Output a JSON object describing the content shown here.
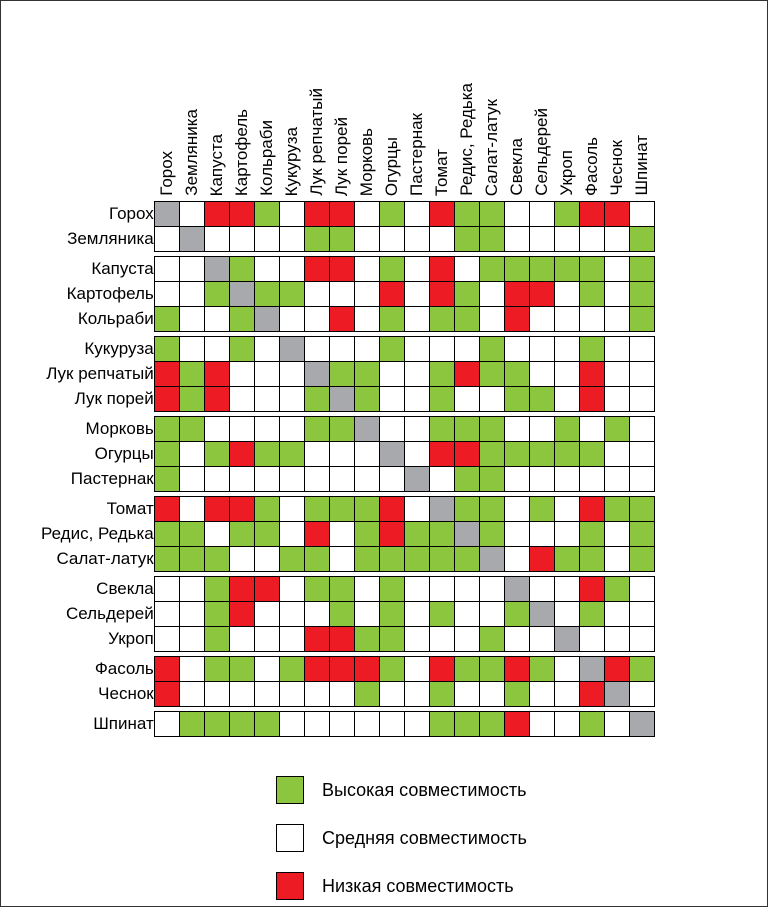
{
  "colors": {
    "high": "#8cc63f",
    "medium": "#ffffff",
    "low": "#ed1c24",
    "diag": "#a7a9ac",
    "border": "#000000",
    "background": "#ffffff",
    "text": "#000000"
  },
  "cellSize": 25,
  "labelFontSize": 17,
  "legendFontSize": 18,
  "headerHeight": 160,
  "plants": [
    "Горох",
    "Земляника",
    "Капуста",
    "Картофель",
    "Кольраби",
    "Кукуруза",
    "Лук репчатый",
    "Лук порей",
    "Морковь",
    "Огурцы",
    "Пастернак",
    "Томат",
    "Редис, Редька",
    "Салат-латук",
    "Свекла",
    "Сельдерей",
    "Укроп",
    "Фасоль",
    "Чеснок",
    "Шпинат"
  ],
  "gapsAfter": [
    1,
    4,
    7,
    10,
    13,
    16,
    18
  ],
  "matrix": [
    [
      "D",
      "",
      "L",
      "L",
      "H",
      "",
      "L",
      "L",
      "",
      "H",
      "",
      "L",
      "H",
      "H",
      "",
      "",
      "H",
      "L",
      "L",
      ""
    ],
    [
      "",
      "D",
      "",
      "",
      "",
      "",
      "H",
      "H",
      "",
      "",
      "",
      "",
      "H",
      "H",
      "",
      "",
      "",
      "",
      "",
      "H"
    ],
    [
      "",
      "",
      "D",
      "H",
      "",
      "",
      "L",
      "L",
      "",
      "H",
      "",
      "L",
      "",
      "H",
      "H",
      "H",
      "H",
      "H",
      "",
      "H"
    ],
    [
      "",
      "",
      "H",
      "D",
      "H",
      "H",
      "",
      "",
      "",
      "L",
      "",
      "L",
      "H",
      "",
      "L",
      "L",
      "",
      "H",
      "",
      "H"
    ],
    [
      "H",
      "",
      "",
      "H",
      "D",
      "",
      "",
      "L",
      "",
      "H",
      "",
      "H",
      "H",
      "",
      "L",
      "",
      "",
      "",
      "",
      "H"
    ],
    [
      "H",
      "",
      "",
      "H",
      "",
      "D",
      "",
      "",
      "",
      "H",
      "",
      "",
      "",
      "H",
      "",
      "",
      "",
      "H",
      "",
      ""
    ],
    [
      "L",
      "H",
      "L",
      "",
      "",
      "",
      "D",
      "H",
      "H",
      "",
      "",
      "H",
      "L",
      "H",
      "H",
      "",
      "",
      "L",
      "",
      ""
    ],
    [
      "L",
      "H",
      "L",
      "",
      "",
      "",
      "H",
      "D",
      "H",
      "",
      "",
      "H",
      "",
      "",
      "H",
      "H",
      "",
      "L",
      "",
      ""
    ],
    [
      "H",
      "H",
      "",
      "",
      "",
      "",
      "H",
      "H",
      "D",
      "",
      "",
      "H",
      "H",
      "H",
      "",
      "",
      "H",
      "",
      "H",
      ""
    ],
    [
      "H",
      "",
      "H",
      "L",
      "H",
      "H",
      "",
      "",
      "",
      "D",
      "",
      "L",
      "L",
      "H",
      "H",
      "H",
      "H",
      "H",
      "",
      ""
    ],
    [
      "H",
      "",
      "",
      "",
      "",
      "",
      "",
      "",
      "",
      "",
      "D",
      "",
      "H",
      "H",
      "",
      "",
      "",
      "",
      "",
      ""
    ],
    [
      "L",
      "",
      "L",
      "L",
      "H",
      "",
      "H",
      "H",
      "H",
      "L",
      "",
      "D",
      "H",
      "H",
      "",
      "H",
      "",
      "L",
      "H",
      "H"
    ],
    [
      "H",
      "H",
      "",
      "H",
      "H",
      "",
      "L",
      "",
      "H",
      "L",
      "H",
      "H",
      "D",
      "H",
      "",
      "",
      "",
      "H",
      "",
      "H"
    ],
    [
      "H",
      "H",
      "H",
      "",
      "",
      "H",
      "H",
      "",
      "H",
      "H",
      "H",
      "H",
      "H",
      "D",
      "",
      "L",
      "H",
      "H",
      "",
      "H"
    ],
    [
      "",
      "",
      "H",
      "L",
      "L",
      "",
      "H",
      "H",
      "",
      "H",
      "",
      "",
      "",
      "",
      "D",
      "",
      "",
      "L",
      "H",
      ""
    ],
    [
      "",
      "",
      "H",
      "L",
      "",
      "",
      "",
      "H",
      "",
      "H",
      "",
      "H",
      "",
      "",
      "H",
      "D",
      "",
      "H",
      "",
      ""
    ],
    [
      "",
      "",
      "H",
      "",
      "",
      "",
      "L",
      "L",
      "H",
      "H",
      "",
      "",
      "",
      "H",
      "",
      "",
      "D",
      "",
      "",
      ""
    ],
    [
      "L",
      "",
      "H",
      "H",
      "",
      "H",
      "L",
      "L",
      "L",
      "H",
      "",
      "L",
      "H",
      "H",
      "L",
      "H",
      "",
      "D",
      "L",
      "H"
    ],
    [
      "L",
      "",
      "",
      "",
      "",
      "",
      "",
      "",
      "H",
      "",
      "",
      "H",
      "",
      "",
      "H",
      "",
      "",
      "L",
      "D",
      ""
    ],
    [
      "",
      "H",
      "H",
      "H",
      "H",
      "",
      "",
      "",
      "",
      "",
      "",
      "H",
      "H",
      "H",
      "L",
      "",
      "",
      "H",
      "",
      "D"
    ]
  ],
  "legend": [
    {
      "key": "high",
      "label": "Высокая совместимость"
    },
    {
      "key": "medium",
      "label": "Средняя совместимость"
    },
    {
      "key": "low",
      "label": "Низкая совместимость"
    }
  ]
}
